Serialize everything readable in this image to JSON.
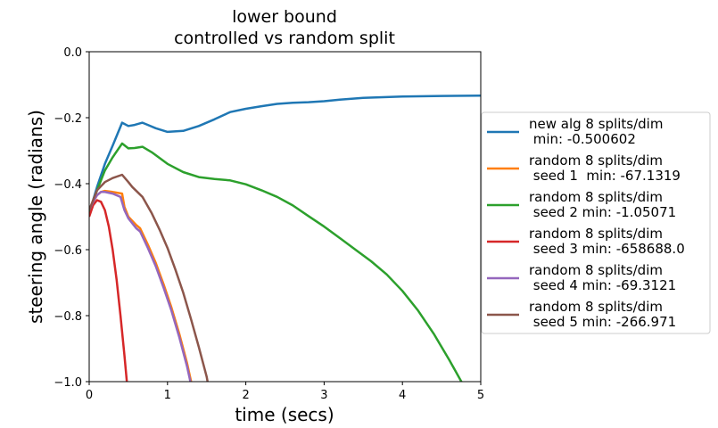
{
  "chart_data": {
    "type": "line",
    "title": [
      "lower bound",
      "controlled vs random split"
    ],
    "xlabel": "time (secs)",
    "ylabel": "steering angle (radians)",
    "xlim": [
      0,
      5
    ],
    "ylim": [
      -1.0,
      0.0
    ],
    "xticks": [
      0,
      1,
      2,
      3,
      4,
      5
    ],
    "yticks": [
      0.0,
      -0.2,
      -0.4,
      -0.6,
      -0.8,
      -1.0
    ],
    "xtick_labels": [
      "0",
      "1",
      "2",
      "3",
      "4",
      "5"
    ],
    "ytick_labels": [
      "0.0",
      "−0.2",
      "−0.4",
      "−0.6",
      "−0.8",
      "−1.0"
    ],
    "grid": false,
    "legend_position": "outside-right",
    "series": [
      {
        "name": [
          "new alg 8 splits/dim",
          " min: -0.500602"
        ],
        "color": "#1f77b4",
        "x": [
          0,
          0.1,
          0.2,
          0.3,
          0.42,
          0.5,
          0.58,
          0.68,
          0.75,
          0.85,
          1.0,
          1.2,
          1.4,
          1.6,
          1.8,
          2.0,
          2.2,
          2.4,
          2.6,
          2.8,
          3.0,
          3.2,
          3.5,
          4.0,
          4.5,
          5.0
        ],
        "y": [
          -0.49,
          -0.41,
          -0.34,
          -0.285,
          -0.215,
          -0.225,
          -0.222,
          -0.215,
          -0.222,
          -0.232,
          -0.243,
          -0.24,
          -0.225,
          -0.205,
          -0.183,
          -0.173,
          -0.165,
          -0.158,
          -0.155,
          -0.153,
          -0.15,
          -0.145,
          -0.14,
          -0.136,
          -0.134,
          -0.133
        ]
      },
      {
        "name": [
          "random 8 splits/dim",
          " seed 1  min: -67.1319"
        ],
        "color": "#ff7f0e",
        "x": [
          0,
          0.05,
          0.1,
          0.15,
          0.2,
          0.3,
          0.42,
          0.45,
          0.5,
          0.6,
          0.65,
          0.75,
          0.85,
          0.95,
          1.05,
          1.15,
          1.25,
          1.32
        ],
        "y": [
          -0.48,
          -0.455,
          -0.435,
          -0.425,
          -0.422,
          -0.425,
          -0.43,
          -0.47,
          -0.5,
          -0.525,
          -0.535,
          -0.585,
          -0.64,
          -0.705,
          -0.775,
          -0.855,
          -0.945,
          -1.02
        ]
      },
      {
        "name": [
          "random 8 splits/dim",
          " seed 2 min: -1.05071"
        ],
        "color": "#2ca02c",
        "x": [
          0,
          0.1,
          0.2,
          0.3,
          0.42,
          0.5,
          0.58,
          0.68,
          0.8,
          1.0,
          1.2,
          1.4,
          1.6,
          1.8,
          2.0,
          2.2,
          2.4,
          2.6,
          2.8,
          3.0,
          3.2,
          3.4,
          3.6,
          3.8,
          4.0,
          4.2,
          4.4,
          4.6,
          4.8,
          4.95,
          5.0
        ],
        "y": [
          -0.49,
          -0.42,
          -0.36,
          -0.32,
          -0.278,
          -0.293,
          -0.292,
          -0.288,
          -0.305,
          -0.34,
          -0.365,
          -0.38,
          -0.386,
          -0.39,
          -0.402,
          -0.42,
          -0.44,
          -0.466,
          -0.498,
          -0.53,
          -0.565,
          -0.6,
          -0.635,
          -0.675,
          -0.725,
          -0.785,
          -0.855,
          -0.935,
          -1.02,
          -1.08,
          -1.1
        ]
      },
      {
        "name": [
          "random 8 splits/dim",
          " seed 3 min: -658688.0"
        ],
        "color": "#d62728",
        "x": [
          0,
          0.05,
          0.1,
          0.15,
          0.2,
          0.25,
          0.3,
          0.35,
          0.4,
          0.45,
          0.5,
          0.55
        ],
        "y": [
          -0.5,
          -0.465,
          -0.45,
          -0.455,
          -0.48,
          -0.53,
          -0.6,
          -0.69,
          -0.8,
          -0.92,
          -1.05,
          -1.15
        ]
      },
      {
        "name": [
          "random 8 splits/dim",
          " seed 4 min: -69.3121"
        ],
        "color": "#9467bd",
        "x": [
          0,
          0.05,
          0.1,
          0.15,
          0.2,
          0.3,
          0.4,
          0.45,
          0.5,
          0.6,
          0.65,
          0.75,
          0.85,
          0.95,
          1.05,
          1.15,
          1.25,
          1.32
        ],
        "y": [
          -0.48,
          -0.455,
          -0.435,
          -0.425,
          -0.425,
          -0.43,
          -0.44,
          -0.48,
          -0.505,
          -0.535,
          -0.545,
          -0.595,
          -0.65,
          -0.715,
          -0.785,
          -0.865,
          -0.955,
          -1.03
        ]
      },
      {
        "name": [
          "random 8 splits/dim",
          " seed 5 min: -266.971"
        ],
        "color": "#8c564b",
        "x": [
          0,
          0.1,
          0.2,
          0.3,
          0.42,
          0.5,
          0.55,
          0.68,
          0.8,
          0.9,
          1.0,
          1.1,
          1.2,
          1.3,
          1.4,
          1.5,
          1.55
        ],
        "y": [
          -0.48,
          -0.42,
          -0.395,
          -0.383,
          -0.373,
          -0.395,
          -0.41,
          -0.44,
          -0.49,
          -0.54,
          -0.595,
          -0.66,
          -0.73,
          -0.81,
          -0.895,
          -0.985,
          -1.05
        ]
      }
    ]
  }
}
